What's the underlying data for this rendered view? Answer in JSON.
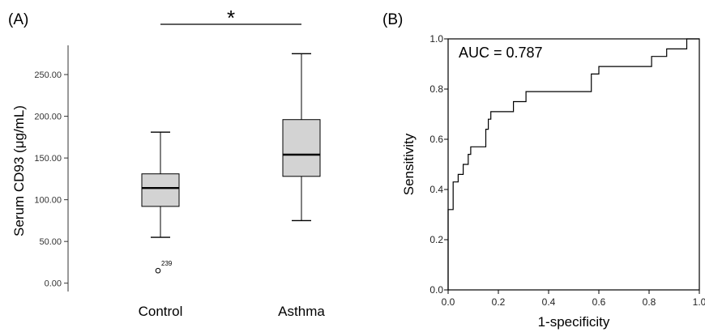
{
  "chart_data": [
    {
      "panel": "(A)",
      "type": "boxplot",
      "ylabel": "Serum CD93 (μg/mL)",
      "ylim": [
        -10,
        285
      ],
      "yticks": [
        "0.00",
        "50.00",
        "100.00",
        "150.00",
        "200.00",
        "250.00"
      ],
      "ytick_values": [
        0,
        50,
        100,
        150,
        200,
        250
      ],
      "categories": [
        "Control",
        "Asthma"
      ],
      "boxes": [
        {
          "name": "Control",
          "min": 55,
          "q1": 92,
          "median": 114,
          "q3": 131,
          "max": 181,
          "outliers": [
            {
              "value": 15,
              "label": "239"
            }
          ]
        },
        {
          "name": "Asthma",
          "min": 75,
          "q1": 128,
          "median": 154,
          "q3": 196,
          "max": 275,
          "outliers": []
        }
      ],
      "significance": "*",
      "colors": {
        "box_fill": "#d3d3d3",
        "stroke": "#000000"
      }
    },
    {
      "panel": "(B)",
      "type": "line",
      "xlabel": "1-specificity",
      "ylabel": "Sensitivity",
      "xlim": [
        0,
        1
      ],
      "ylim": [
        0,
        1
      ],
      "xticks": [
        "0.0",
        "0.2",
        "0.4",
        "0.6",
        "0.8",
        "1.0"
      ],
      "yticks": [
        "0.0",
        "0.2",
        "0.4",
        "0.6",
        "0.8",
        "1.0"
      ],
      "tick_values": [
        0,
        0.2,
        0.4,
        0.6,
        0.8,
        1.0
      ],
      "annotation": "AUC = 0.787",
      "series": [
        {
          "x": [
            0,
            0,
            0.02,
            0.02,
            0.04,
            0.04,
            0.06,
            0.06,
            0.08,
            0.08,
            0.09,
            0.09,
            0.15,
            0.15,
            0.16,
            0.16,
            0.17,
            0.17,
            0.26,
            0.26,
            0.31,
            0.31,
            0.57,
            0.57,
            0.6,
            0.6,
            0.81,
            0.81,
            0.87,
            0.87,
            0.95,
            0.95,
            1.0
          ],
          "y": [
            0,
            0.32,
            0.32,
            0.43,
            0.43,
            0.46,
            0.46,
            0.5,
            0.5,
            0.54,
            0.54,
            0.57,
            0.57,
            0.64,
            0.64,
            0.68,
            0.68,
            0.71,
            0.71,
            0.75,
            0.75,
            0.79,
            0.79,
            0.86,
            0.86,
            0.89,
            0.89,
            0.93,
            0.93,
            0.96,
            0.96,
            1.0,
            1.0
          ]
        }
      ]
    }
  ]
}
